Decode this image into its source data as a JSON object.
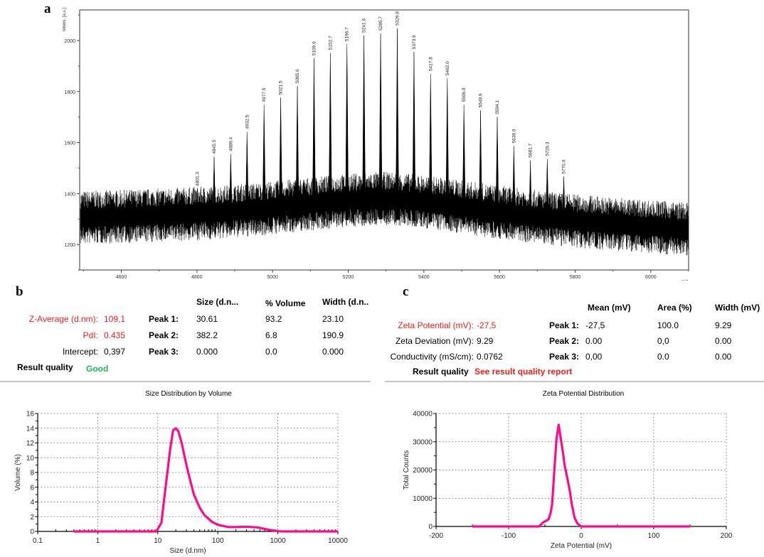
{
  "panels": {
    "a": {
      "label": "a"
    },
    "b": {
      "label": "b"
    },
    "c": {
      "label": "c"
    }
  },
  "colors": {
    "curve": "#ff0a8c",
    "alert_red": "#ee1c1c",
    "good_green": "#1db954",
    "spectrum": "#000000"
  },
  "size_table": {
    "headers": [
      "Size (d.n...",
      "% Volume",
      "Width (d.n.."
    ],
    "z_average_label": "Z-Average (d.nm):",
    "z_average_value": "109,1",
    "pdi_label": "PdI:",
    "pdi_value": "0.435",
    "intercept_label": "Intercept:",
    "intercept_value": "0,397",
    "result_quality_label": "Result quality",
    "result_quality_value": "Good",
    "peaks": [
      {
        "label": "Peak 1:",
        "size": "30.61",
        "volume": "93.2",
        "width": "23.10"
      },
      {
        "label": "Peak 2:",
        "size": "382.2",
        "volume": "6.8",
        "width": "190.9"
      },
      {
        "label": "Peak 3:",
        "size": "0.000",
        "volume": "0.0",
        "width": "0.000"
      }
    ]
  },
  "zeta_table": {
    "headers": [
      "Mean (mV)",
      "Area (%)",
      "Width (mV)"
    ],
    "zeta_potential_label": "Zeta Potential (mV):",
    "zeta_potential_value": "-27,5",
    "zeta_deviation_label": "Zeta Deviation (mV):",
    "zeta_deviation_value": "9.29",
    "conductivity_label": "Conductivity (mS/cm):",
    "conductivity_value": "0.0762",
    "result_quality_label": "Result quality",
    "result_quality_value": "See result quality report",
    "peaks": [
      {
        "label": "Peak 1:",
        "mean": "-27,5",
        "area": "100.0",
        "width": "9.29"
      },
      {
        "label": "Peak 2:",
        "mean": "0.00",
        "area": "0,0",
        "width": "0.00"
      },
      {
        "label": "Peak 3:",
        "mean": "0,00",
        "area": "0.0",
        "width": "0.00"
      }
    ]
  },
  "chart_data": [
    {
      "type": "line",
      "title": "",
      "xlabel": "m/z",
      "ylabel": "Intens. [a.u.]",
      "xlim": [
        4490,
        6100
      ],
      "ylim": [
        1100,
        2120
      ],
      "xticks": [
        4600,
        4800,
        5000,
        5200,
        5400,
        5600,
        5800,
        6000
      ],
      "yticks": [
        1200,
        1400,
        1600,
        1800,
        2000
      ],
      "grid": false,
      "baseline": {
        "start": 1310,
        "mid": 1340,
        "mid_x": 5300,
        "end": 1265,
        "noise_amplitude": 70
      },
      "peaks": [
        {
          "mz": 4801.3,
          "label": "4801.3",
          "intensity": 1418
        },
        {
          "mz": 4845.5,
          "label": "4845.5",
          "intensity": 1544
        },
        {
          "mz": 4889.4,
          "label": "4889.4",
          "intensity": 1555
        },
        {
          "mz": 4932.5,
          "label": "4932.5",
          "intensity": 1642
        },
        {
          "mz": 4977.5,
          "label": "4977.5",
          "intensity": 1748
        },
        {
          "mz": 5021.5,
          "label": "5021.5",
          "intensity": 1776
        },
        {
          "mz": 5065.6,
          "label": "5065.6",
          "intensity": 1821
        },
        {
          "mz": 5109.6,
          "label": "5109.6",
          "intensity": 1930
        },
        {
          "mz": 5152.7,
          "label": "5152.7",
          "intensity": 1952
        },
        {
          "mz": 5196.7,
          "label": "5196.7",
          "intensity": 1986
        },
        {
          "mz": 5241.6,
          "label": "5241.6",
          "intensity": 2020
        },
        {
          "mz": 5285.7,
          "label": "5285.7",
          "intensity": 2028
        },
        {
          "mz": 5329.8,
          "label": "5329.8",
          "intensity": 2048
        },
        {
          "mz": 5373.9,
          "label": "5373.9",
          "intensity": 1955
        },
        {
          "mz": 5417.8,
          "label": "5417.8",
          "intensity": 1869
        },
        {
          "mz": 5462.0,
          "label": "5462.0",
          "intensity": 1852
        },
        {
          "mz": 5506.0,
          "label": "5506.0",
          "intensity": 1748
        },
        {
          "mz": 5549.9,
          "label": "5549.9",
          "intensity": 1726
        },
        {
          "mz": 5594.1,
          "label": "5594.1",
          "intensity": 1700
        },
        {
          "mz": 5638.0,
          "label": "5638.0",
          "intensity": 1586
        },
        {
          "mz": 5681.7,
          "label": "5681.7",
          "intensity": 1530
        },
        {
          "mz": 5726.3,
          "label": "5726.3",
          "intensity": 1536
        },
        {
          "mz": 5770.0,
          "label": "5770.0",
          "intensity": 1466
        }
      ]
    },
    {
      "type": "line",
      "title": "Size Distribution by Volume",
      "xlabel": "Size (d.nm)",
      "ylabel": "Volume (%)",
      "xscale": "log",
      "xlim": [
        0.1,
        10000
      ],
      "ylim": [
        0,
        16
      ],
      "xticks": [
        0.1,
        1,
        10,
        100,
        1000,
        10000
      ],
      "xtick_labels": [
        "0.1",
        "1",
        "10",
        "100",
        "1000",
        "10000"
      ],
      "yticks": [
        0,
        2,
        4,
        6,
        8,
        10,
        12,
        14,
        16
      ],
      "grid": true,
      "x": [
        0.4,
        9.5,
        11.5,
        13.5,
        16,
        18,
        20,
        22,
        25,
        30,
        35,
        40,
        50,
        60,
        80,
        100,
        150,
        200,
        300,
        450,
        600,
        800,
        1000,
        1200,
        10000
      ],
      "y": [
        0,
        0,
        1.2,
        6,
        11,
        13.7,
        14,
        13.6,
        12,
        9,
        6.8,
        5,
        3.2,
        2.2,
        1.3,
        0.9,
        0.6,
        0.6,
        0.65,
        0.55,
        0.35,
        0.15,
        0.03,
        0,
        0
      ]
    },
    {
      "type": "line",
      "title": "Zeta Potential Distribution",
      "xlabel": "Zeta Potential (mV)",
      "ylabel": "Total Counts",
      "xlim": [
        -200,
        200
      ],
      "ylim": [
        0,
        40000
      ],
      "xticks": [
        -200,
        -100,
        0,
        100,
        200
      ],
      "yticks": [
        0,
        10000,
        20000,
        30000,
        40000
      ],
      "grid": true,
      "x": [
        -150,
        -58,
        -55,
        -52,
        -45,
        -42,
        -40,
        -37,
        -34,
        -31,
        -28,
        -25,
        -23,
        -19,
        -16,
        -13,
        -9,
        -5,
        0,
        150
      ],
      "y": [
        0,
        0,
        800,
        1500,
        2500,
        5000,
        8000,
        20000,
        31000,
        36000,
        31000,
        26000,
        22000,
        17000,
        13000,
        8000,
        3000,
        1000,
        0,
        0
      ]
    }
  ]
}
